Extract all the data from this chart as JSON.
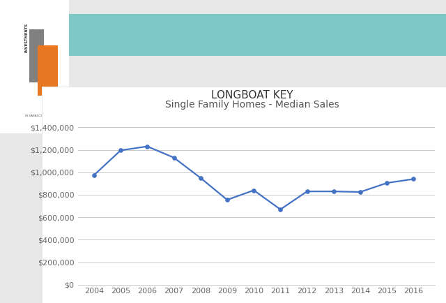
{
  "title1": "LONGBOAT KEY",
  "title2": "Single Family Homes - Median Sales",
  "years": [
    2004,
    2005,
    2006,
    2007,
    2008,
    2009,
    2010,
    2011,
    2012,
    2013,
    2014,
    2015,
    2016
  ],
  "values": [
    975000,
    1195000,
    1230000,
    1130000,
    950000,
    755000,
    840000,
    670000,
    830000,
    830000,
    825000,
    905000,
    940000
  ],
  "line_color": "#4472C4",
  "marker_color": "#4472C4",
  "grid_color": "#C8C8C8",
  "chart_bg": "#FFFFFF",
  "outer_bg": "#E8E8E8",
  "header_color": "#7EC8C8",
  "logo_bg": "#FFFFFF",
  "ylim": [
    0,
    1400000
  ],
  "ytick_step": 200000,
  "title1_fontsize": 11,
  "title2_fontsize": 10,
  "tick_label_color": "#666666",
  "tick_fontsize": 8
}
